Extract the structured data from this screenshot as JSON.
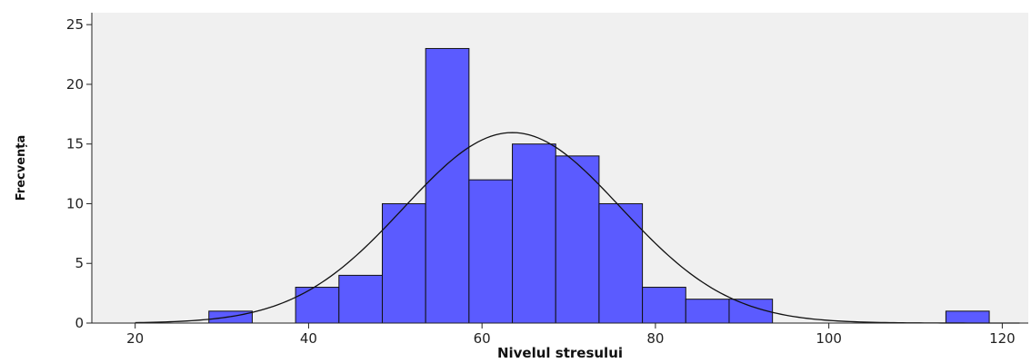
{
  "chart_data": {
    "type": "bar",
    "title": "",
    "xlabel": "Nivelul stresului",
    "ylabel": "Frecvența",
    "xlim": [
      15,
      123
    ],
    "ylim": [
      0,
      26
    ],
    "x_ticks": [
      20,
      40,
      60,
      80,
      100,
      120
    ],
    "y_ticks": [
      0,
      5,
      10,
      15,
      20,
      25
    ],
    "x_tick_labels": [
      "20",
      "40",
      "60",
      "80",
      "100",
      "120"
    ],
    "y_tick_labels": [
      "0",
      "5",
      "10",
      "15",
      "20",
      "25"
    ],
    "bin_width": 5,
    "bins": [
      {
        "start": 28.5,
        "end": 33.5,
        "count": 1
      },
      {
        "start": 38.5,
        "end": 43.5,
        "count": 3
      },
      {
        "start": 43.5,
        "end": 48.5,
        "count": 4
      },
      {
        "start": 48.5,
        "end": 53.5,
        "count": 10
      },
      {
        "start": 53.5,
        "end": 58.5,
        "count": 23
      },
      {
        "start": 58.5,
        "end": 63.5,
        "count": 12
      },
      {
        "start": 63.5,
        "end": 68.5,
        "count": 15
      },
      {
        "start": 68.5,
        "end": 73.5,
        "count": 14
      },
      {
        "start": 73.5,
        "end": 78.5,
        "count": 10
      },
      {
        "start": 78.5,
        "end": 83.5,
        "count": 3
      },
      {
        "start": 83.5,
        "end": 88.5,
        "count": 2
      },
      {
        "start": 88.5,
        "end": 93.5,
        "count": 2
      },
      {
        "start": 113.5,
        "end": 118.5,
        "count": 1
      }
    ],
    "normal_curve": {
      "mean": 63.5,
      "sd": 12.5,
      "n": 100
    },
    "grid": false,
    "colors": {
      "bar_fill": "#5b5bff",
      "bar_stroke": "#111111",
      "plot_background": "#f0f0f0",
      "curve": "#111111"
    }
  }
}
